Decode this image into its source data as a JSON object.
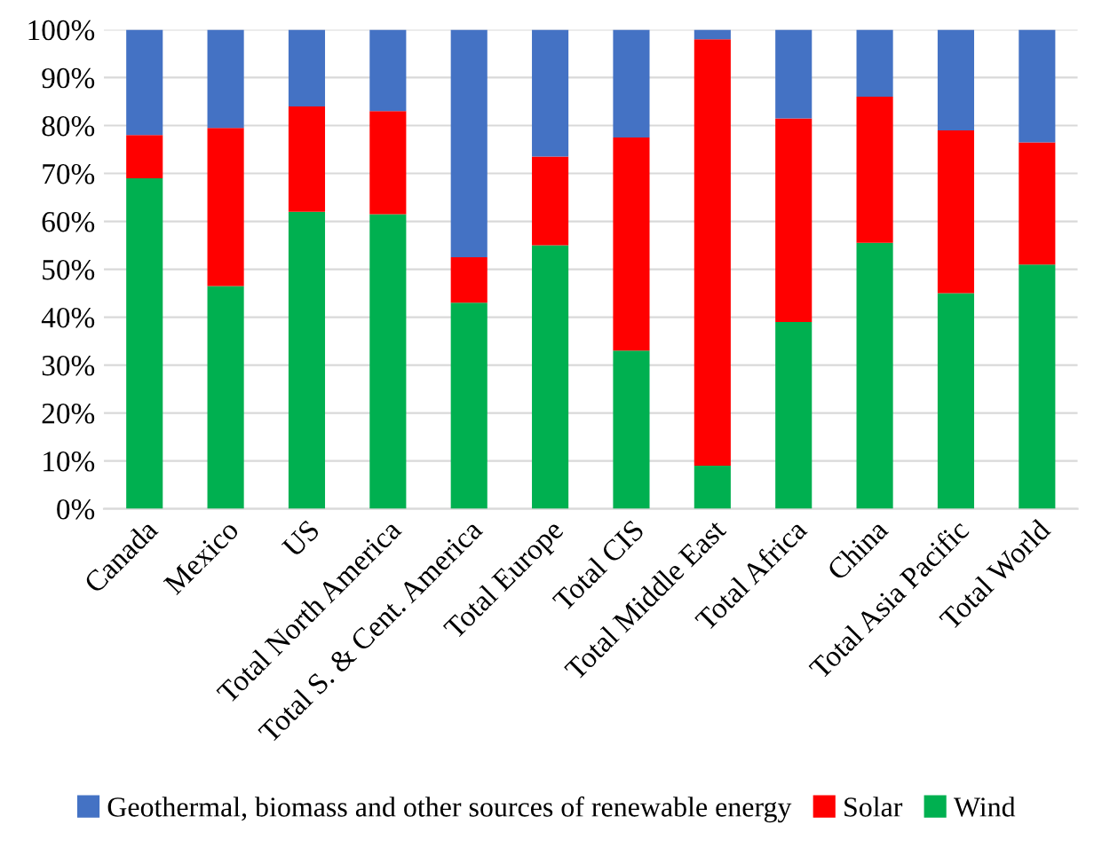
{
  "chart_data": {
    "type": "bar",
    "stacked": true,
    "categories": [
      "Canada",
      "Mexico",
      "US",
      "Total North America",
      "Total S. & Cent. America",
      "Total Europe",
      "Total CIS",
      "Total Middle East",
      "Total Africa",
      "China",
      "Total Asia Pacific",
      "Total World"
    ],
    "series": [
      {
        "name": "Wind",
        "color": "#00b050",
        "values": [
          69,
          46.5,
          62,
          61.5,
          43,
          55,
          33,
          9,
          39,
          55.5,
          45,
          51
        ]
      },
      {
        "name": "Solar",
        "color": "#ff0000",
        "values": [
          9,
          33,
          22,
          21.5,
          9.5,
          18.5,
          44.5,
          89,
          42.5,
          30.5,
          34,
          25.5
        ]
      },
      {
        "name": "Geothermal, biomass and other sources of renewable energy",
        "color": "#4472c4",
        "values": [
          22,
          20.5,
          16,
          17,
          47.5,
          26.5,
          22.5,
          2,
          18.5,
          14,
          21,
          23.5
        ]
      }
    ],
    "ylim": [
      0,
      100
    ],
    "yticks": [
      {
        "value": 0,
        "label": "0%"
      },
      {
        "value": 10,
        "label": "10%"
      },
      {
        "value": 20,
        "label": "20%"
      },
      {
        "value": 30,
        "label": "30%"
      },
      {
        "value": 40,
        "label": "40%"
      },
      {
        "value": 50,
        "label": "50%"
      },
      {
        "value": 60,
        "label": "60%"
      },
      {
        "value": 70,
        "label": "70%"
      },
      {
        "value": 80,
        "label": "80%"
      },
      {
        "value": 90,
        "label": "90%"
      },
      {
        "value": 100,
        "label": "100%"
      }
    ],
    "grid": "y",
    "legend": "bottom"
  }
}
